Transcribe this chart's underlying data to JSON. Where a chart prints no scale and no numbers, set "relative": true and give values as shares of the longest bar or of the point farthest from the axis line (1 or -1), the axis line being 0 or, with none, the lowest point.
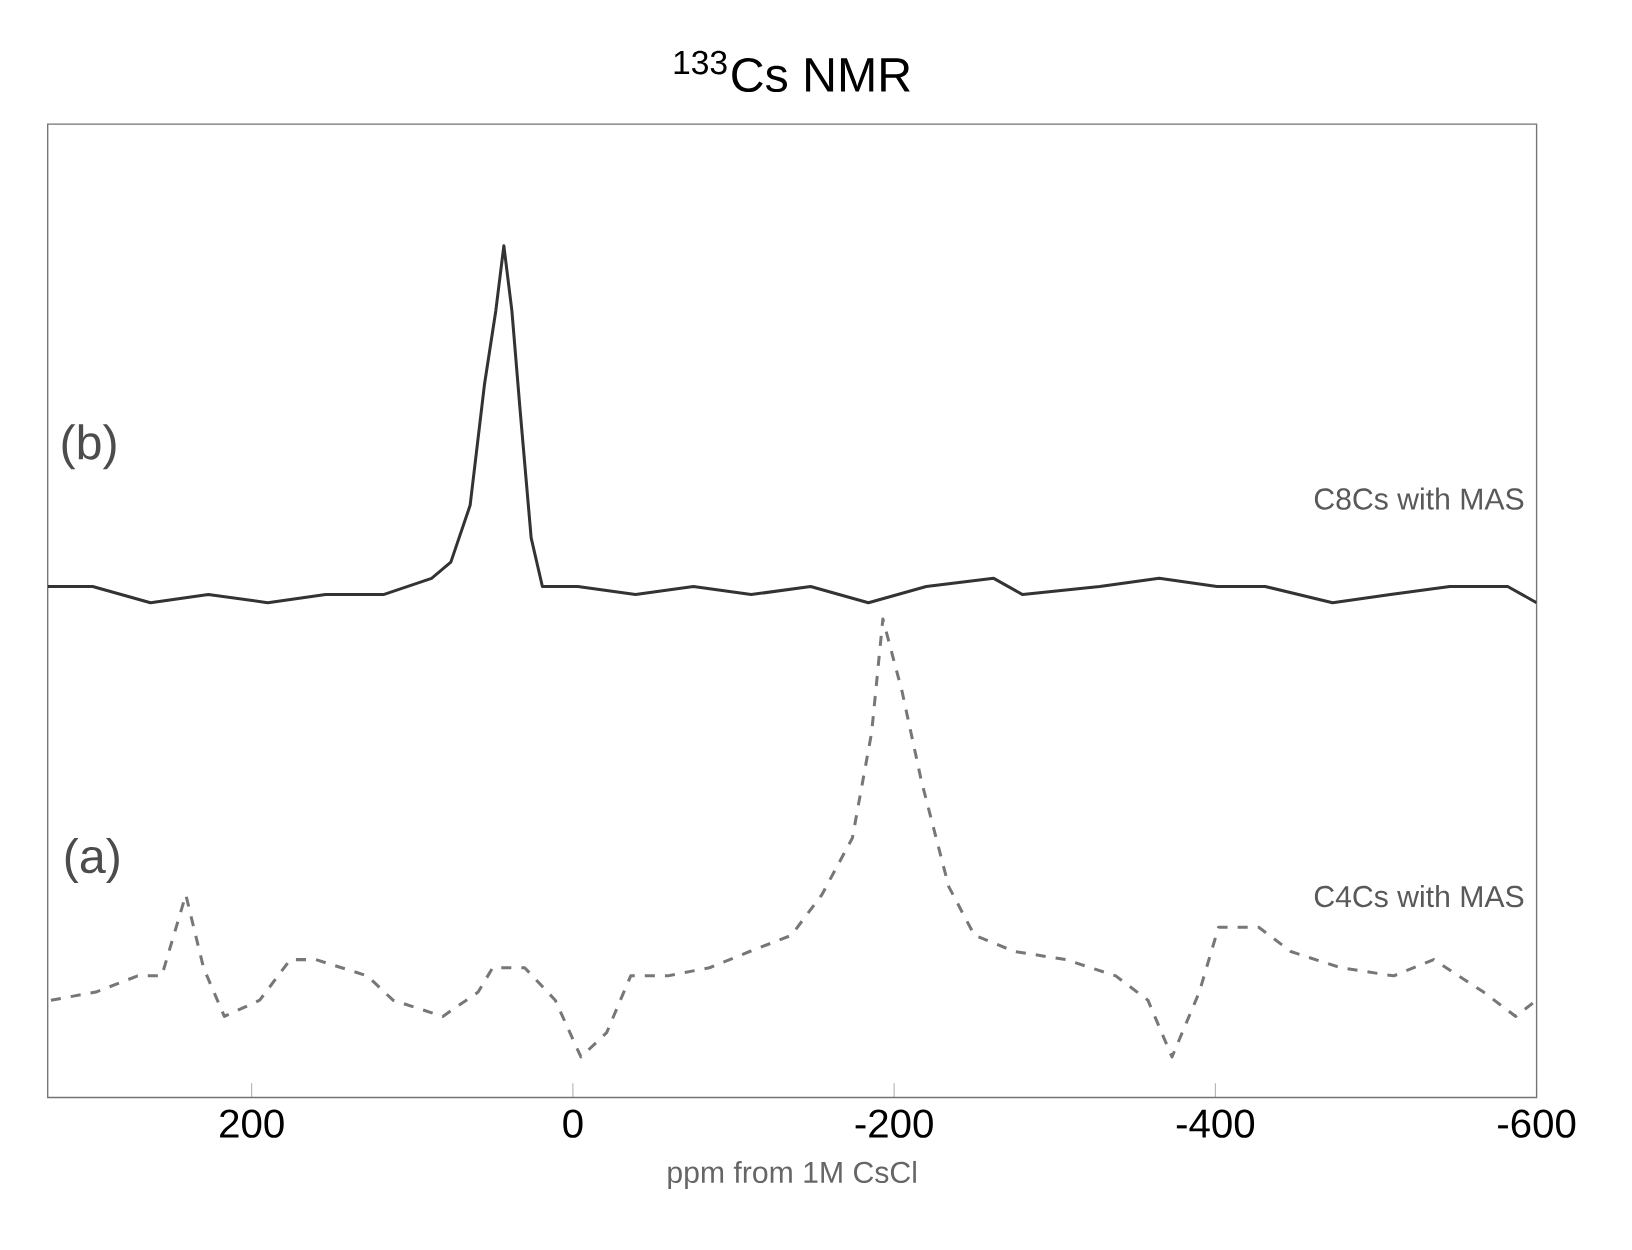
{
  "chart_data": {
    "type": "line",
    "title": "$^{133}$Cs NMR",
    "xlabel": "ppm from 1M CsCl",
    "relative": true,
    "xlim": [
      327,
      -600
    ],
    "xticks": [
      200,
      0,
      -200,
      -400,
      -600
    ],
    "grid": false,
    "marker": "none",
    "annotations": [
      "(b)",
      "(a)"
    ],
    "series": [
      {
        "name": "C8Cs with MAS",
        "color": "#333333",
        "line_style": "solid",
        "x": [
          327,
          299,
          263,
          227,
          190,
          154,
          118,
          88,
          76,
          64,
          55,
          48,
          43,
          38,
          33,
          26,
          19,
          -3,
          -39,
          -75,
          -111,
          -148,
          -184,
          -220,
          -262,
          -280,
          -328,
          -365,
          -401,
          -431,
          -473,
          -509,
          -546,
          -582,
          -600
        ],
        "values": [
          0.58,
          0.58,
          0.56,
          0.57,
          0.56,
          0.57,
          0.57,
          0.59,
          0.61,
          0.68,
          0.83,
          0.92,
          1,
          0.92,
          0.8,
          0.64,
          0.58,
          0.58,
          0.57,
          0.58,
          0.57,
          0.58,
          0.56,
          0.58,
          0.59,
          0.57,
          0.58,
          0.59,
          0.58,
          0.58,
          0.56,
          0.57,
          0.58,
          0.58,
          0.56
        ]
      },
      {
        "name": "C4Cs with MAS",
        "color": "#777777",
        "line_style": "dashed",
        "x": [
          325,
          297,
          271,
          256,
          241,
          230,
          217,
          195,
          176,
          160,
          128,
          112,
          81,
          59,
          50,
          30,
          11,
          -5,
          -21,
          -36,
          -59,
          -85,
          -110,
          -136,
          -155,
          -174,
          -186,
          -193,
          -205,
          -217,
          -234,
          -250,
          -275,
          -307,
          -338,
          -358,
          -373,
          -390,
          -402,
          -427,
          -447,
          -478,
          -511,
          -536,
          -567,
          -587,
          -600
        ],
        "values": [
          0.07,
          0.08,
          0.1,
          0.1,
          0.2,
          0.11,
          0.05,
          0.07,
          0.12,
          0.12,
          0.1,
          0.07,
          0.05,
          0.08,
          0.11,
          0.11,
          0.07,
          0,
          0.03,
          0.1,
          0.1,
          0.11,
          0.13,
          0.15,
          0.2,
          0.27,
          0.4,
          0.54,
          0.45,
          0.34,
          0.21,
          0.15,
          0.13,
          0.12,
          0.1,
          0.07,
          0,
          0.08,
          0.16,
          0.16,
          0.13,
          0.11,
          0.1,
          0.12,
          0.08,
          0.05,
          0.07
        ]
      }
    ]
  }
}
